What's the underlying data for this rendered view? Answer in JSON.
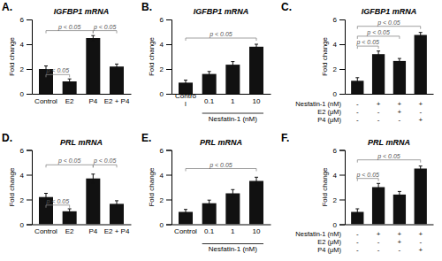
{
  "chart_data": [
    {
      "type": "bar",
      "panel_label": "A.",
      "title": "IGFBP1 mRNA",
      "categories": [
        "Control",
        "E2",
        "P4",
        "E2 + P4"
      ],
      "values": [
        2.0,
        1.0,
        4.5,
        2.2
      ],
      "errors": [
        0.25,
        0.2,
        0.2,
        0.2
      ],
      "ylabel": "Fold change",
      "ylim": [
        0,
        6
      ],
      "yticks": [
        0,
        2,
        4,
        6
      ],
      "color": "#111111",
      "annotations": [
        {
          "x1": 0,
          "x2": 1,
          "y": 1.55,
          "label": "p < 0.05"
        },
        {
          "x1": 0,
          "x2": 2,
          "y": 5.1,
          "label": "p < 0.05"
        },
        {
          "x1": 2,
          "x2": 3,
          "y": 5.1,
          "label": "p < 0.05"
        }
      ]
    },
    {
      "type": "bar",
      "panel_label": "B.",
      "title": "IGFBP1 mRNA",
      "categories": [
        "Contro\nl",
        "0.1",
        "1",
        "10"
      ],
      "xlabel": "Nesfatin-1 (nM)",
      "values": [
        0.9,
        1.6,
        2.35,
        3.8
      ],
      "errors": [
        0.2,
        0.2,
        0.25,
        0.2
      ],
      "ylabel": "Fold change",
      "ylim": [
        0,
        6
      ],
      "yticks": [
        0,
        2,
        4,
        6
      ],
      "color": "#111111",
      "annotations": [
        {
          "x1": 0,
          "x2": 3,
          "y": 4.5,
          "label": "p < 0.05"
        }
      ]
    },
    {
      "type": "bar",
      "panel_label": "C.",
      "title": "IGFBP1 mRNA",
      "categories": [
        null,
        null,
        null,
        null
      ],
      "row_labels": [
        "Nesfatin-1 (nM)",
        "E2 (μM)",
        "P4 (μM)"
      ],
      "row_signs": [
        [
          "-",
          "+",
          "+",
          "+"
        ],
        [
          "-",
          "-",
          "+",
          "-"
        ],
        [
          "-",
          "-",
          "-",
          "+"
        ]
      ],
      "values": [
        1.05,
        3.2,
        2.65,
        4.75
      ],
      "errors": [
        0.25,
        0.25,
        0.2,
        0.2
      ],
      "ylabel": "Fold change",
      "ylim": [
        0,
        6
      ],
      "yticks": [
        0,
        2,
        4,
        6
      ],
      "color": "#111111",
      "annotations": [
        {
          "x1": 0,
          "x2": 1,
          "y": 3.85,
          "label": "p < 0.05"
        },
        {
          "x1": 0,
          "x2": 2,
          "y": 4.65,
          "label": "p < 0.05"
        },
        {
          "x1": 0,
          "x2": 3,
          "y": 5.45,
          "label": "p < 0.05"
        }
      ]
    },
    {
      "type": "bar",
      "panel_label": "D.",
      "title": "PRL mRNA",
      "categories": [
        "Control",
        "E2",
        "P4",
        "E2 + P4"
      ],
      "values": [
        2.2,
        1.05,
        3.7,
        1.65
      ],
      "errors": [
        0.3,
        0.2,
        0.35,
        0.25
      ],
      "ylabel": "Fold change",
      "ylim": [
        0,
        6
      ],
      "yticks": [
        0,
        2,
        4,
        6
      ],
      "color": "#111111",
      "annotations": [
        {
          "x1": 0,
          "x2": 1,
          "y": 1.55,
          "label": "p < 0.05"
        },
        {
          "x1": 0,
          "x2": 2,
          "y": 4.8,
          "label": "p < 0.05"
        },
        {
          "x1": 2,
          "x2": 3,
          "y": 4.8,
          "label": "p < 0.05"
        }
      ]
    },
    {
      "type": "bar",
      "panel_label": "E.",
      "title": "PRL mRNA",
      "categories": [
        "Control",
        "0.1",
        "1",
        "10"
      ],
      "xlabel": "Nesfatin-1 (nM)",
      "values": [
        1.0,
        1.7,
        2.5,
        3.5
      ],
      "errors": [
        0.2,
        0.25,
        0.3,
        0.3
      ],
      "ylabel": "Fold change",
      "ylim": [
        0,
        6
      ],
      "yticks": [
        0,
        2,
        4,
        6
      ],
      "color": "#111111",
      "annotations": [
        {
          "x1": 0,
          "x2": 3,
          "y": 4.5,
          "label": "p < 0.05"
        }
      ]
    },
    {
      "type": "bar",
      "panel_label": "F.",
      "title": "PRL mRNA",
      "categories": [
        null,
        null,
        null,
        null
      ],
      "row_labels": [
        "Nesfatin-1 (nM)",
        "E2 (μM)",
        "P4 (μM)"
      ],
      "row_signs": [
        [
          "-",
          "+",
          "+",
          "+"
        ],
        [
          "-",
          "-",
          "+",
          "-"
        ],
        [
          "-",
          "-",
          "-",
          "+"
        ]
      ],
      "values": [
        1.0,
        3.0,
        2.4,
        4.5
      ],
      "errors": [
        0.25,
        0.3,
        0.25,
        0.2
      ],
      "ylabel": "Fold change",
      "ylim": [
        0,
        6
      ],
      "yticks": [
        0,
        2,
        4,
        6
      ],
      "color": "#111111",
      "annotations": [
        {
          "x1": 0,
          "x2": 1,
          "y": 3.7,
          "label": "p < 0.05"
        },
        {
          "x1": 0,
          "x2": 3,
          "y": 5.2,
          "label": "p < 0.05"
        }
      ]
    }
  ]
}
